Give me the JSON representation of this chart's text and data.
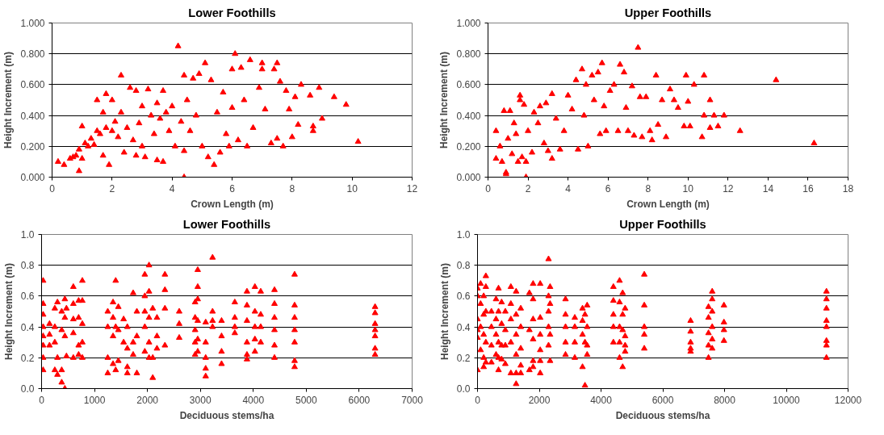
{
  "chart_data": [
    {
      "type": "scatter",
      "title": "Lower Foothills",
      "xlabel": "Crown Length (m)",
      "ylabel": "Height Increment (m)",
      "marker": "triangle",
      "grid": "y",
      "xlim": [
        0,
        12
      ],
      "xticks": [
        0,
        2,
        4,
        6,
        8,
        10,
        12
      ],
      "ylim": [
        0,
        1
      ],
      "yticks": [
        {
          "value": 0,
          "label": "0.000"
        },
        {
          "value": 0.2,
          "label": "0.200"
        },
        {
          "value": 0.4,
          "label": "0.400"
        },
        {
          "value": 0.6,
          "label": "0.600"
        },
        {
          "value": 0.8,
          "label": "0.800"
        },
        {
          "value": 1,
          "label": "1.000"
        }
      ],
      "series": [
        {
          "color": "#ff0000",
          "x": [
            0.2,
            0.4,
            0.6,
            0.7,
            0.8,
            0.9,
            0.9,
            1.0,
            1.0,
            1.1,
            1.2,
            1.3,
            1.4,
            1.5,
            1.5,
            1.6,
            1.7,
            1.7,
            1.8,
            1.8,
            1.9,
            2.0,
            2.0,
            2.1,
            2.2,
            2.3,
            2.3,
            2.4,
            2.5,
            2.6,
            2.7,
            2.8,
            2.8,
            2.9,
            3.0,
            3.0,
            3.1,
            3.2,
            3.3,
            3.4,
            3.5,
            3.5,
            3.6,
            3.7,
            3.7,
            3.8,
            3.9,
            4.0,
            4.1,
            4.2,
            4.3,
            4.4,
            4.4,
            4.4,
            4.5,
            4.6,
            4.7,
            4.8,
            4.9,
            5.0,
            5.1,
            5.2,
            5.3,
            5.4,
            5.5,
            5.6,
            5.7,
            5.8,
            5.9,
            6.0,
            6.0,
            6.1,
            6.2,
            6.3,
            6.4,
            6.5,
            6.6,
            6.7,
            6.9,
            7.0,
            7.0,
            7.1,
            7.3,
            7.4,
            7.5,
            7.5,
            7.6,
            7.7,
            7.8,
            7.9,
            8.0,
            8.1,
            8.2,
            8.3,
            8.6,
            8.7,
            8.7,
            8.9,
            9.0,
            9.4,
            9.8,
            10.2
          ],
          "values": [
            0.1,
            0.08,
            0.12,
            0.13,
            0.14,
            0.04,
            0.18,
            0.33,
            0.12,
            0.22,
            0.2,
            0.25,
            0.21,
            0.5,
            0.3,
            0.28,
            0.42,
            0.14,
            0.54,
            0.32,
            0.08,
            0.5,
            0.3,
            0.36,
            0.26,
            0.66,
            0.42,
            0.16,
            0.32,
            0.58,
            0.24,
            0.14,
            0.56,
            0.35,
            0.46,
            0.2,
            0.13,
            0.57,
            0.4,
            0.28,
            0.48,
            0.11,
            0.38,
            0.1,
            0.56,
            0.42,
            0.3,
            0.46,
            0.2,
            0.85,
            0.36,
            0.66,
            0.0,
            0.17,
            0.5,
            0.3,
            0.64,
            0.4,
            0.67,
            0.2,
            0.74,
            0.13,
            0.63,
            0.08,
            0.42,
            0.16,
            0.55,
            0.28,
            0.2,
            0.7,
            0.45,
            0.8,
            0.24,
            0.71,
            0.5,
            0.2,
            0.76,
            0.32,
            0.58,
            0.74,
            0.7,
            0.44,
            0.22,
            0.7,
            0.74,
            0.25,
            0.62,
            0.2,
            0.56,
            0.44,
            0.26,
            0.52,
            0.34,
            0.6,
            0.53,
            0.33,
            0.3,
            0.58,
            0.38,
            0.52,
            0.47,
            0.23
          ]
        }
      ]
    },
    {
      "type": "scatter",
      "title": "Upper Foothills",
      "xlabel": "Crown Length (m)",
      "ylabel": "Height Increment (m)",
      "marker": "triangle",
      "grid": "y",
      "xlim": [
        0,
        18
      ],
      "xticks": [
        0,
        2,
        4,
        6,
        8,
        10,
        12,
        14,
        16,
        18
      ],
      "ylim": [
        0,
        1
      ],
      "yticks": [
        {
          "value": 0,
          "label": "0.000"
        },
        {
          "value": 0.2,
          "label": "0.200"
        },
        {
          "value": 0.4,
          "label": "0.400"
        },
        {
          "value": 0.6,
          "label": "0.600"
        },
        {
          "value": 0.8,
          "label": "0.800"
        },
        {
          "value": 1,
          "label": "1.000"
        }
      ],
      "series": [
        {
          "color": "#ff0000",
          "x": [
            0.4,
            0.4,
            0.6,
            0.7,
            0.8,
            0.9,
            0.9,
            1.0,
            1.1,
            1.2,
            1.3,
            1.4,
            1.5,
            1.6,
            1.6,
            1.7,
            1.8,
            1.9,
            1.9,
            2.0,
            2.2,
            2.3,
            2.5,
            2.6,
            2.8,
            2.9,
            3.0,
            3.2,
            3.2,
            3.4,
            3.6,
            3.8,
            4.0,
            4.2,
            4.4,
            4.5,
            4.7,
            4.8,
            4.9,
            5.0,
            5.2,
            5.3,
            5.5,
            5.6,
            5.7,
            5.8,
            5.9,
            6.1,
            6.3,
            6.5,
            6.6,
            6.8,
            6.9,
            7.0,
            7.2,
            7.3,
            7.5,
            7.6,
            7.7,
            7.9,
            8.1,
            8.2,
            8.4,
            8.5,
            8.7,
            8.9,
            9.1,
            9.3,
            9.5,
            9.8,
            9.9,
            10.0,
            10.1,
            10.3,
            10.7,
            10.8,
            10.8,
            11.1,
            11.1,
            11.3,
            11.5,
            11.8,
            12.6,
            14.4,
            16.3
          ],
          "values": [
            0.3,
            0.12,
            0.2,
            0.1,
            0.43,
            0.03,
            0.02,
            0.25,
            0.43,
            0.15,
            0.35,
            0.28,
            0.1,
            0.53,
            0.5,
            0.13,
            0.47,
            0.1,
            0.0,
            0.3,
            0.16,
            0.42,
            0.35,
            0.46,
            0.22,
            0.48,
            0.17,
            0.12,
            0.54,
            0.38,
            0.18,
            0.3,
            0.53,
            0.44,
            0.63,
            0.18,
            0.7,
            0.4,
            0.6,
            0.2,
            0.66,
            0.5,
            0.68,
            0.28,
            0.74,
            0.46,
            0.3,
            0.56,
            0.6,
            0.3,
            0.73,
            0.68,
            0.45,
            0.3,
            0.59,
            0.27,
            0.84,
            0.52,
            0.26,
            0.52,
            0.3,
            0.24,
            0.66,
            0.34,
            0.5,
            0.26,
            0.57,
            0.5,
            0.45,
            0.33,
            0.66,
            0.49,
            0.33,
            0.6,
            0.26,
            0.66,
            0.4,
            0.32,
            0.5,
            0.4,
            0.33,
            0.4,
            0.3,
            0.63,
            0.22
          ]
        }
      ]
    },
    {
      "type": "scatter",
      "title": "Lower Foothills",
      "xlabel": "Deciduous stems/ha",
      "ylabel": "Height Increment (m)",
      "marker": "triangle",
      "grid": "y",
      "xlim": [
        0,
        7000
      ],
      "xticks": [
        0,
        1000,
        2000,
        3000,
        4000,
        5000,
        6000,
        7000
      ],
      "ylim": [
        0,
        1
      ],
      "yticks": [
        {
          "value": 0,
          "label": "0.0"
        },
        {
          "value": 0.2,
          "label": "0.2"
        },
        {
          "value": 0.4,
          "label": "0.4"
        },
        {
          "value": 0.6,
          "label": "0.6"
        },
        {
          "value": 0.8,
          "label": "0.8"
        },
        {
          "value": 1,
          "label": "1.0"
        }
      ],
      "series": [
        {
          "color": "#ff0000",
          "x": [
            30,
            30,
            30,
            30,
            30,
            30,
            30,
            30,
            150,
            150,
            150,
            250,
            250,
            250,
            250,
            300,
            300,
            300,
            380,
            380,
            380,
            380,
            440,
            440,
            440,
            440,
            470,
            470,
            600,
            600,
            600,
            600,
            600,
            700,
            700,
            700,
            700,
            770,
            770,
            770,
            770,
            770,
            1250,
            1250,
            1250,
            1250,
            1350,
            1350,
            1350,
            1350,
            1400,
            1400,
            1400,
            1450,
            1450,
            1450,
            1550,
            1550,
            1620,
            1620,
            1620,
            1620,
            1730,
            1730,
            1730,
            1800,
            1800,
            1800,
            1950,
            1950,
            1950,
            1950,
            1950,
            2030,
            2030,
            2030,
            2030,
            2030,
            2100,
            2100,
            2100,
            2180,
            2180,
            2180,
            2330,
            2330,
            2330,
            2330,
            2600,
            2600,
            2600,
            2900,
            2900,
            2900,
            2900,
            2900,
            2950,
            2950,
            2950,
            2950,
            2950,
            2950,
            3100,
            3100,
            3100,
            3100,
            3100,
            3230,
            3230,
            3230,
            3230,
            3400,
            3400,
            3400,
            3400,
            3650,
            3650,
            3650,
            3650,
            3880,
            3880,
            3880,
            3880,
            3880,
            3880,
            4030,
            4030,
            4030,
            4030,
            4030,
            4140,
            4140,
            4140,
            4140,
            4400,
            4400,
            4400,
            4400,
            4400,
            4400,
            4780,
            4780,
            4780,
            4780,
            4780,
            4780,
            4780,
            6300,
            6300,
            6300,
            6300,
            6300,
            6300,
            6300
          ],
          "values": [
            0.7,
            0.55,
            0.48,
            0.4,
            0.34,
            0.28,
            0.2,
            0.12,
            0.42,
            0.35,
            0.28,
            0.52,
            0.4,
            0.3,
            0.12,
            0.56,
            0.2,
            0.09,
            0.5,
            0.38,
            0.12,
            0.04,
            0.58,
            0.46,
            0.34,
            0.0,
            0.52,
            0.21,
            0.66,
            0.55,
            0.45,
            0.36,
            0.2,
            0.57,
            0.46,
            0.28,
            0.22,
            0.7,
            0.57,
            0.42,
            0.3,
            0.2,
            0.5,
            0.4,
            0.2,
            0.1,
            0.56,
            0.46,
            0.34,
            0.16,
            0.7,
            0.4,
            0.12,
            0.53,
            0.38,
            0.18,
            0.45,
            0.3,
            0.4,
            0.26,
            0.14,
            0.1,
            0.62,
            0.3,
            0.22,
            0.5,
            0.34,
            0.1,
            0.74,
            0.6,
            0.5,
            0.4,
            0.24,
            0.8,
            0.63,
            0.46,
            0.3,
            0.2,
            0.52,
            0.2,
            0.07,
            0.46,
            0.34,
            0.26,
            0.74,
            0.64,
            0.52,
            0.28,
            0.5,
            0.42,
            0.33,
            0.56,
            0.46,
            0.38,
            0.3,
            0.22,
            0.77,
            0.66,
            0.58,
            0.44,
            0.32,
            0.24,
            0.43,
            0.3,
            0.2,
            0.13,
            0.08,
            0.85,
            0.5,
            0.44,
            0.4,
            0.44,
            0.34,
            0.24,
            0.16,
            0.56,
            0.46,
            0.4,
            0.36,
            0.63,
            0.54,
            0.44,
            0.3,
            0.22,
            0.19,
            0.66,
            0.5,
            0.4,
            0.32,
            0.24,
            0.63,
            0.48,
            0.4,
            0.3,
            0.64,
            0.55,
            0.46,
            0.38,
            0.28,
            0.2,
            0.74,
            0.54,
            0.46,
            0.38,
            0.3,
            0.18,
            0.14,
            0.53,
            0.49,
            0.42,
            0.38,
            0.34,
            0.26,
            0.22
          ]
        }
      ]
    },
    {
      "type": "scatter",
      "title": "Upper Foothills",
      "xlabel": "Deciduous stems/ha",
      "ylabel": "Height Increment (m)",
      "marker": "triangle",
      "grid": "y",
      "xlim": [
        0,
        12000
      ],
      "xticks": [
        0,
        2000,
        4000,
        6000,
        8000,
        10000,
        12000
      ],
      "ylim": [
        0,
        1
      ],
      "yticks": [
        {
          "value": 0,
          "label": "0.0"
        },
        {
          "value": 0.2,
          "label": "0.2"
        },
        {
          "value": 0.4,
          "label": "0.4"
        },
        {
          "value": 0.6,
          "label": "0.6"
        },
        {
          "value": 0.8,
          "label": "0.8"
        },
        {
          "value": 1,
          "label": "1.0"
        }
      ],
      "series": [
        {
          "color": "#ff0000",
          "x": [
            0,
            0,
            0,
            0,
            0,
            0,
            100,
            100,
            100,
            100,
            200,
            200,
            200,
            200,
            200,
            270,
            270,
            270,
            270,
            270,
            450,
            450,
            450,
            450,
            600,
            600,
            600,
            600,
            680,
            680,
            680,
            680,
            680,
            780,
            780,
            780,
            780,
            900,
            900,
            900,
            900,
            1080,
            1080,
            1080,
            1080,
            1080,
            1250,
            1250,
            1250,
            1250,
            1250,
            1250,
            1400,
            1400,
            1400,
            1400,
            1400,
            1680,
            1680,
            1680,
            1800,
            1800,
            1800,
            1800,
            1800,
            1800,
            2030,
            2030,
            2030,
            2030,
            2030,
            2030,
            2300,
            2300,
            2300,
            2300,
            2300,
            2350,
            2350,
            2350,
            2350,
            2850,
            2850,
            2850,
            2850,
            2850,
            3150,
            3150,
            3150,
            3150,
            3400,
            3400,
            3400,
            3400,
            3480,
            3480,
            3480,
            3550,
            3550,
            3550,
            3550,
            4400,
            4400,
            4400,
            4400,
            4400,
            4600,
            4600,
            4600,
            4600,
            4600,
            4700,
            4700,
            4700,
            4700,
            4780,
            4780,
            4780,
            4780,
            5400,
            5400,
            5400,
            5400,
            5400,
            6900,
            6900,
            6900,
            6900,
            6900,
            7480,
            7480,
            7480,
            7480,
            7480,
            7600,
            7600,
            7600,
            7600,
            7600,
            7600,
            7980,
            7980,
            7980,
            7980,
            11300,
            11300,
            11300,
            11300,
            11300,
            11300,
            11300,
            11300
          ],
          "values": [
            0.65,
            0.6,
            0.45,
            0.38,
            0.33,
            0.12,
            0.68,
            0.55,
            0.4,
            0.25,
            0.6,
            0.48,
            0.35,
            0.2,
            0.14,
            0.73,
            0.66,
            0.5,
            0.3,
            0.17,
            0.5,
            0.4,
            0.28,
            0.17,
            0.58,
            0.45,
            0.35,
            0.22,
            0.65,
            0.5,
            0.3,
            0.2,
            0.12,
            0.56,
            0.42,
            0.28,
            0.19,
            0.5,
            0.38,
            0.28,
            0.16,
            0.66,
            0.55,
            0.45,
            0.3,
            0.1,
            0.63,
            0.48,
            0.35,
            0.22,
            0.1,
            0.03,
            0.52,
            0.4,
            0.26,
            0.15,
            0.1,
            0.62,
            0.38,
            0.12,
            0.68,
            0.58,
            0.45,
            0.32,
            0.18,
            0.14,
            0.68,
            0.46,
            0.35,
            0.25,
            0.18,
            0.1,
            0.84,
            0.6,
            0.5,
            0.4,
            0.28,
            0.66,
            0.55,
            0.35,
            0.18,
            0.58,
            0.48,
            0.4,
            0.3,
            0.22,
            0.46,
            0.4,
            0.3,
            0.2,
            0.52,
            0.44,
            0.35,
            0.14,
            0.48,
            0.3,
            0.02,
            0.54,
            0.4,
            0.28,
            0.22,
            0.66,
            0.57,
            0.48,
            0.4,
            0.3,
            0.7,
            0.56,
            0.4,
            0.3,
            0.2,
            0.62,
            0.48,
            0.38,
            0.14,
            0.52,
            0.34,
            0.28,
            0.24,
            0.74,
            0.54,
            0.4,
            0.35,
            0.26,
            0.44,
            0.37,
            0.3,
            0.26,
            0.24,
            0.53,
            0.46,
            0.36,
            0.28,
            0.2,
            0.63,
            0.58,
            0.5,
            0.4,
            0.32,
            0.26,
            0.54,
            0.43,
            0.38,
            0.31,
            0.63,
            0.58,
            0.52,
            0.44,
            0.4,
            0.31,
            0.28,
            0.2
          ]
        }
      ]
    }
  ]
}
